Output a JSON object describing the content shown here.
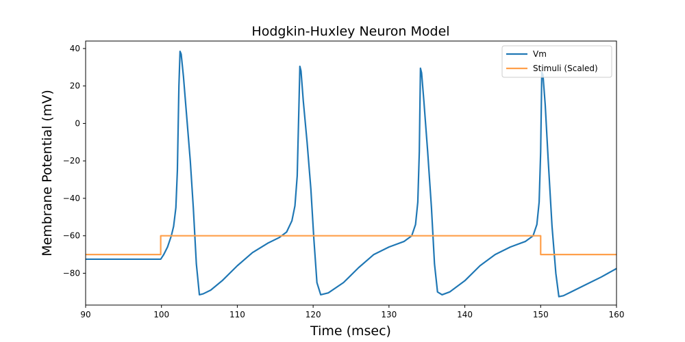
{
  "chart_data": {
    "type": "line",
    "title": "Hodgkin-Huxley Neuron Model",
    "xlabel": "Time (msec)",
    "ylabel": "Membrane Potential (mV)",
    "xlim": [
      90,
      160
    ],
    "ylim": [
      -97,
      44
    ],
    "xticks": [
      90,
      100,
      110,
      120,
      130,
      140,
      150,
      160
    ],
    "yticks": [
      -80,
      -60,
      -40,
      -20,
      0,
      20,
      40
    ],
    "grid": false,
    "legend_position": "top-right",
    "series": [
      {
        "name": "Vm",
        "color": "#1f77b4",
        "x": [
          90,
          99.9,
          100.3,
          100.8,
          101.3,
          101.6,
          101.9,
          102.1,
          102.3,
          102.45,
          102.6,
          102.9,
          103.3,
          103.8,
          104.2,
          104.6,
          105.0,
          105.5,
          106.5,
          108.0,
          110.0,
          112.0,
          114.0,
          115.5,
          116.5,
          117.2,
          117.6,
          117.9,
          118.1,
          118.25,
          118.4,
          118.7,
          119.2,
          119.7,
          120.1,
          120.5,
          121.0,
          122.0,
          124.0,
          126.0,
          128.0,
          130.0,
          132.0,
          133.0,
          133.5,
          133.8,
          134.0,
          134.15,
          134.3,
          134.6,
          135.1,
          135.6,
          136.0,
          136.4,
          137.0,
          138.0,
          140.0,
          142.0,
          144.0,
          146.0,
          148.0,
          149.0,
          149.5,
          149.8,
          150.0,
          150.15,
          150.3,
          150.6,
          151.0,
          151.5,
          152.0,
          152.4,
          153.0,
          154.0,
          156.0,
          158.0,
          160.0
        ],
        "values": [
          -72.5,
          -72.5,
          -70,
          -66,
          -60,
          -55,
          -45,
          -25,
          20,
          38.5,
          37,
          25,
          5,
          -20,
          -45,
          -75,
          -91.5,
          -91,
          -89,
          -84,
          -76,
          -69,
          -64,
          -61,
          -58,
          -52,
          -44,
          -28,
          5,
          30.5,
          28,
          12,
          -10,
          -35,
          -62,
          -85,
          -91.5,
          -90.5,
          -85,
          -77,
          -70,
          -66,
          -63,
          -60,
          -54,
          -42,
          -15,
          29.5,
          27,
          12,
          -15,
          -45,
          -75,
          -90,
          -91.5,
          -90,
          -84,
          -76,
          -70,
          -66,
          -63,
          -60,
          -54,
          -42,
          -15,
          27.5,
          26,
          10,
          -20,
          -55,
          -80,
          -92.5,
          -92,
          -90,
          -86,
          -82,
          -77.5
        ]
      },
      {
        "name": "Stimuli (Scaled)",
        "color": "#ff9f4a",
        "x": [
          90,
          99.9,
          99.9,
          150.0,
          150.0,
          160
        ],
        "values": [
          -70,
          -70,
          -60,
          -60,
          -70,
          -70
        ]
      }
    ]
  }
}
